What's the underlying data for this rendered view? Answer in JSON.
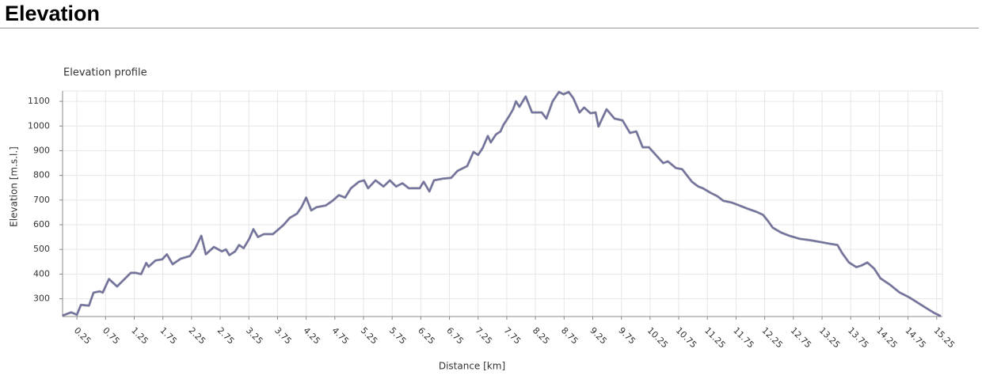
{
  "heading": "Elevation",
  "chart_data": {
    "type": "line",
    "title": "Elevation profile",
    "xlabel": "Distance [km]",
    "ylabel": "Elevation [m.s.l.]",
    "color": "#6e6e9e",
    "grid": true,
    "xlim": [
      0,
      15.35
    ],
    "ylim": [
      228,
      1142
    ],
    "xticks": [
      0.25,
      0.75,
      1.25,
      1.75,
      2.25,
      2.75,
      3.25,
      3.75,
      4.25,
      4.75,
      5.25,
      5.75,
      6.25,
      6.75,
      7.25,
      7.75,
      8.25,
      8.75,
      9.25,
      9.75,
      10.25,
      10.75,
      11.25,
      11.75,
      12.25,
      12.75,
      13.25,
      13.75,
      14.25,
      14.75,
      15.25
    ],
    "yticks": [
      300,
      400,
      500,
      600,
      700,
      800,
      900,
      1000,
      1100
    ],
    "x": [
      0,
      0.15,
      0.25,
      0.32,
      0.46,
      0.54,
      0.65,
      0.7,
      0.81,
      0.95,
      1.06,
      1.19,
      1.28,
      1.37,
      1.46,
      1.5,
      1.62,
      1.74,
      1.82,
      1.92,
      2.06,
      2.22,
      2.31,
      2.42,
      2.5,
      2.64,
      2.78,
      2.85,
      2.91,
      3.01,
      3.08,
      3.16,
      3.26,
      3.33,
      3.41,
      3.51,
      3.67,
      3.85,
      3.96,
      4.09,
      4.17,
      4.25,
      4.34,
      4.43,
      4.59,
      4.71,
      4.82,
      4.93,
      5.03,
      5.17,
      5.26,
      5.33,
      5.46,
      5.6,
      5.71,
      5.82,
      5.93,
      6.04,
      6.23,
      6.3,
      6.4,
      6.48,
      6.64,
      6.78,
      6.89,
      7.06,
      7.17,
      7.25,
      7.33,
      7.42,
      7.47,
      7.56,
      7.64,
      7.69,
      7.78,
      7.86,
      7.91,
      7.97,
      8.08,
      8.19,
      8.36,
      8.44,
      8.55,
      8.66,
      8.74,
      8.83,
      8.91,
      9.02,
      9.1,
      9.21,
      9.3,
      9.35,
      9.49,
      9.63,
      9.77,
      9.9,
      10.01,
      10.12,
      10.23,
      10.4,
      10.48,
      10.56,
      10.7,
      10.81,
      10.98,
      11.09,
      11.17,
      11.31,
      11.42,
      11.53,
      11.67,
      11.81,
      11.95,
      12.11,
      12.22,
      12.31,
      12.39,
      12.53,
      12.67,
      12.86,
      13.05,
      13.22,
      13.36,
      13.52,
      13.6,
      13.72,
      13.85,
      13.94,
      14.04,
      14.16,
      14.27,
      14.43,
      14.6,
      14.77,
      14.9,
      15.07,
      15.21,
      15.32
    ],
    "values": [
      232,
      245,
      235,
      275,
      272,
      325,
      330,
      325,
      380,
      350,
      375,
      405,
      405,
      400,
      445,
      430,
      455,
      460,
      480,
      440,
      462,
      473,
      502,
      555,
      480,
      510,
      492,
      500,
      477,
      492,
      518,
      505,
      545,
      582,
      550,
      562,
      562,
      598,
      627,
      645,
      672,
      710,
      658,
      671,
      678,
      697,
      720,
      710,
      748,
      774,
      780,
      748,
      780,
      755,
      780,
      755,
      768,
      748,
      748,
      774,
      735,
      780,
      787,
      790,
      818,
      838,
      895,
      883,
      911,
      960,
      934,
      966,
      978,
      1004,
      1036,
      1068,
      1100,
      1078,
      1120,
      1055,
      1055,
      1030,
      1100,
      1138,
      1129,
      1138,
      1113,
      1055,
      1075,
      1052,
      1055,
      998,
      1068,
      1030,
      1023,
      972,
      978,
      914,
      914,
      870,
      850,
      857,
      830,
      825,
      774,
      755,
      748,
      729,
      716,
      697,
      690,
      678,
      665,
      652,
      640,
      614,
      588,
      569,
      556,
      543,
      537,
      530,
      524,
      518,
      486,
      447,
      428,
      435,
      447,
      422,
      383,
      358,
      326,
      306,
      287,
      262,
      242,
      230
    ]
  }
}
